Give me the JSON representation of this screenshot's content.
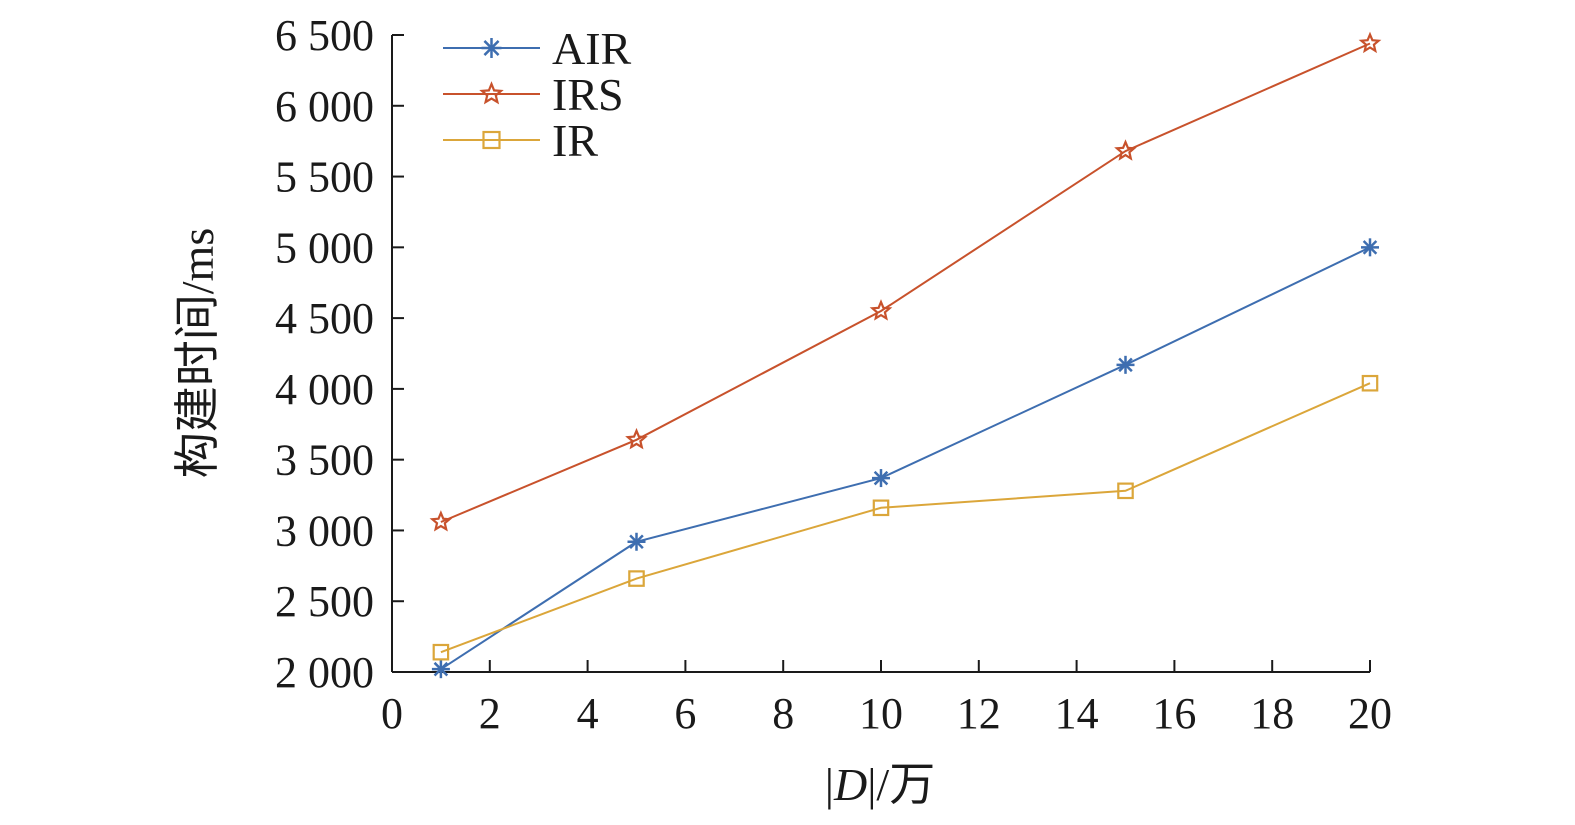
{
  "chart_data": {
    "type": "line",
    "title": "",
    "xlabel_parts": [
      "|",
      "D",
      "|/万"
    ],
    "ylabel": "构建时间/ms",
    "xlim": [
      0,
      20
    ],
    "ylim": [
      2000,
      6500
    ],
    "x_ticks": [
      0,
      2,
      4,
      6,
      8,
      10,
      12,
      14,
      16,
      18,
      20
    ],
    "x_tick_labels": [
      "0",
      "2",
      "4",
      "6",
      "8",
      "10",
      "12",
      "14",
      "16",
      "18",
      "20"
    ],
    "y_ticks": [
      2000,
      2500,
      3000,
      3500,
      4000,
      4500,
      5000,
      5500,
      6000,
      6500
    ],
    "y_tick_labels": [
      "2 000",
      "2 500",
      "3 000",
      "3 500",
      "4 000",
      "4 500",
      "5 000",
      "5 500",
      "6 000",
      "6 500"
    ],
    "grid": false,
    "legend_position": "top-left",
    "x": [
      1,
      5,
      10,
      15,
      20
    ],
    "series": [
      {
        "name": "AIR",
        "marker": "asterisk",
        "color": "#3e6eb0",
        "values": [
          2020,
          2920,
          3370,
          4170,
          5000
        ]
      },
      {
        "name": "IRS",
        "marker": "star",
        "color": "#c8522c",
        "values": [
          3060,
          3640,
          4550,
          5680,
          6440
        ]
      },
      {
        "name": "IR",
        "marker": "square",
        "color": "#dba63a",
        "values": [
          2140,
          2660,
          3160,
          3280,
          4040
        ]
      }
    ]
  }
}
